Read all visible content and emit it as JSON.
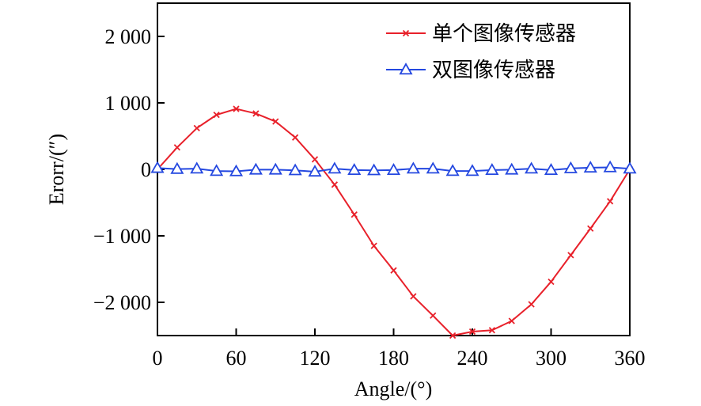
{
  "chart_data": {
    "type": "line",
    "title": "",
    "xlabel": "Angle/(°)",
    "ylabel": "Erorr/(″)",
    "xlim": [
      0,
      360
    ],
    "ylim": [
      -2500,
      2500
    ],
    "xticks": [
      0,
      60,
      120,
      180,
      240,
      300,
      360
    ],
    "xtick_labels": [
      "0",
      "60",
      "120",
      "180",
      "240",
      "300",
      "360"
    ],
    "yticks": [
      2000,
      1000,
      0,
      -1000,
      -2000
    ],
    "ytick_labels": [
      "2 000",
      "1 000",
      "0",
      "−1 000",
      "−2 000"
    ],
    "grid": false,
    "legend_position": "top-right",
    "x": [
      0,
      15,
      30,
      45,
      60,
      75,
      90,
      105,
      120,
      135,
      150,
      165,
      180,
      195,
      210,
      225,
      240,
      255,
      270,
      285,
      300,
      315,
      330,
      345,
      360
    ],
    "series": [
      {
        "name": "单个图像传感器",
        "color": "#e8202a",
        "marker": "x",
        "values": [
          0,
          330,
          620,
          820,
          910,
          840,
          720,
          480,
          150,
          -230,
          -680,
          -1150,
          -1520,
          -1910,
          -2200,
          -2500,
          -2440,
          -2420,
          -2280,
          -2030,
          -1690,
          -1290,
          -890,
          -480,
          0
        ]
      },
      {
        "name": "双图像传感器",
        "color": "#2448e0",
        "marker": "triangle",
        "values": [
          20,
          5,
          10,
          -25,
          -30,
          -5,
          -5,
          -15,
          -35,
          10,
          -10,
          -15,
          -10,
          10,
          10,
          -25,
          -25,
          -10,
          -5,
          10,
          -10,
          15,
          25,
          30,
          10
        ]
      }
    ]
  }
}
